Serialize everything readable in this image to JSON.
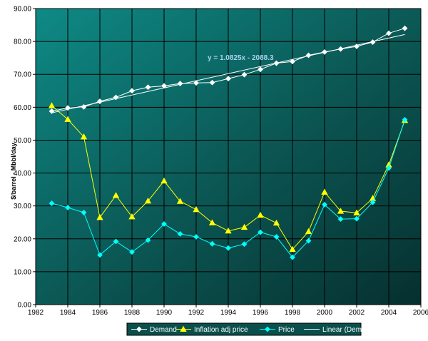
{
  "chart_data": {
    "type": "line",
    "title": "",
    "xlabel": "",
    "ylabel": "$/barrel - Mbbl/day",
    "xlim": [
      1982,
      2006
    ],
    "ylim": [
      0,
      90
    ],
    "x_ticks": [
      "1982",
      "1984",
      "1986",
      "1988",
      "1990",
      "1992",
      "1994",
      "1996",
      "1998",
      "2000",
      "2002",
      "2004",
      "2006"
    ],
    "y_ticks": [
      "0.00",
      "10.00",
      "20.00",
      "30.00",
      "40.00",
      "50.00",
      "60.00",
      "70.00",
      "80.00",
      "90.00"
    ],
    "grid": true,
    "legend_position": "bottom",
    "annotation": "y = 1.0825x - 2088.3",
    "x": [
      1983,
      1984,
      1985,
      1986,
      1987,
      1988,
      1989,
      1990,
      1991,
      1992,
      1993,
      1994,
      1995,
      1996,
      1997,
      1998,
      1999,
      2000,
      2001,
      2002,
      2003,
      2004,
      2005
    ],
    "series": [
      {
        "name": "Demand",
        "color": "#ffffff",
        "marker": "diamond",
        "values": [
          58.8,
          59.8,
          60.1,
          61.8,
          63.0,
          65.0,
          66.1,
          66.5,
          67.2,
          67.4,
          67.5,
          68.7,
          69.9,
          71.5,
          73.4,
          73.9,
          75.8,
          76.8,
          77.7,
          78.5,
          79.8,
          82.5,
          84.0
        ]
      },
      {
        "name": "Inflation adj price",
        "color": "#ffff00",
        "marker": "triangle",
        "values": [
          60.5,
          56.3,
          51.0,
          26.5,
          33.2,
          26.7,
          31.5,
          37.6,
          31.4,
          28.9,
          24.9,
          22.4,
          23.5,
          27.2,
          24.8,
          16.8,
          22.2,
          34.2,
          28.4,
          27.9,
          32.3,
          42.5,
          56.0
        ]
      },
      {
        "name": "Price",
        "color": "#00ffff",
        "marker": "diamond",
        "values": [
          30.8,
          29.5,
          28.0,
          15.1,
          19.2,
          16.0,
          19.6,
          24.5,
          21.5,
          20.6,
          18.5,
          17.2,
          18.4,
          22.0,
          20.6,
          14.4,
          19.4,
          30.4,
          26.0,
          26.1,
          31.1,
          41.5,
          56.2
        ]
      },
      {
        "name": "Linear (Demand)",
        "color": "#ffffff",
        "marker": "none",
        "trend": {
          "slope": 1.0825,
          "intercept": -2088.3,
          "from": 1983,
          "to": 2005
        }
      }
    ]
  }
}
